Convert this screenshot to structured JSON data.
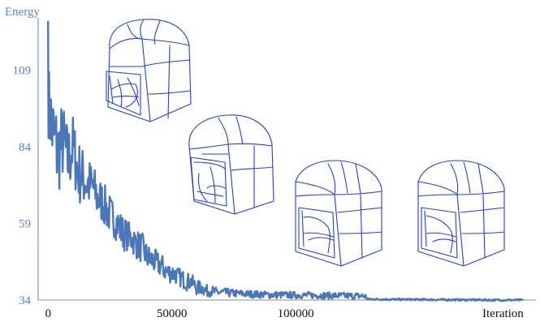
{
  "chart_data": {
    "type": "line",
    "title": "",
    "ylabel": "Energy",
    "xlabel": "Iteration",
    "xlim": [
      -4000,
      197000
    ],
    "ylim": [
      34,
      126
    ],
    "yticks": [
      34,
      59,
      84,
      109
    ],
    "xticks": [
      0,
      50000,
      100000
    ],
    "grid": false,
    "series_color": "#4a77b8",
    "series": [
      {
        "x": [
          0,
          2000,
          4000,
          6000,
          8000,
          10000,
          12000,
          14000,
          16000,
          18000,
          20000,
          22000,
          24000,
          26000,
          28000,
          30000,
          32000,
          34000,
          36000,
          38000,
          40000,
          42000,
          44000,
          46000,
          48000,
          50000,
          52000,
          54000,
          56000,
          58000,
          60000,
          62000,
          64000,
          66000,
          68000,
          70000,
          75000,
          80000,
          90000,
          100000,
          110000,
          120000,
          128000,
          129000,
          140000,
          160000,
          180000,
          192000
        ],
        "values": [
          100,
          88,
          82,
          86,
          79,
          84,
          76,
          74,
          72,
          71,
          67,
          66,
          63,
          61,
          59,
          56,
          55,
          54,
          52,
          51,
          48,
          47,
          46,
          45,
          43,
          43,
          42,
          41,
          40,
          40,
          38,
          38,
          37,
          37,
          36.5,
          36.5,
          36.2,
          36,
          35.7,
          35.6,
          35.5,
          35.4,
          35.3,
          34.3,
          34.2,
          34.1,
          34,
          34
        ],
        "spread": [
          12,
          16,
          15,
          13,
          12,
          11,
          11,
          10,
          9,
          8,
          8,
          7,
          7,
          6,
          6,
          6,
          5,
          5,
          5,
          5,
          4.5,
          4.5,
          4,
          4,
          3.5,
          3.5,
          3,
          3,
          3,
          2.5,
          2.5,
          2.2,
          2,
          1.8,
          1.6,
          1.5,
          1.3,
          1.2,
          1.2,
          1.1,
          1.1,
          1.1,
          1.1,
          0.3,
          0.3,
          0.3,
          0.3,
          0.3
        ]
      }
    ],
    "peak": {
      "x": 0,
      "value": 125
    }
  },
  "mesh_color": "#1f3fd6",
  "mesh_icons": [
    "mesh-1",
    "mesh-2",
    "mesh-3",
    "mesh-4"
  ]
}
